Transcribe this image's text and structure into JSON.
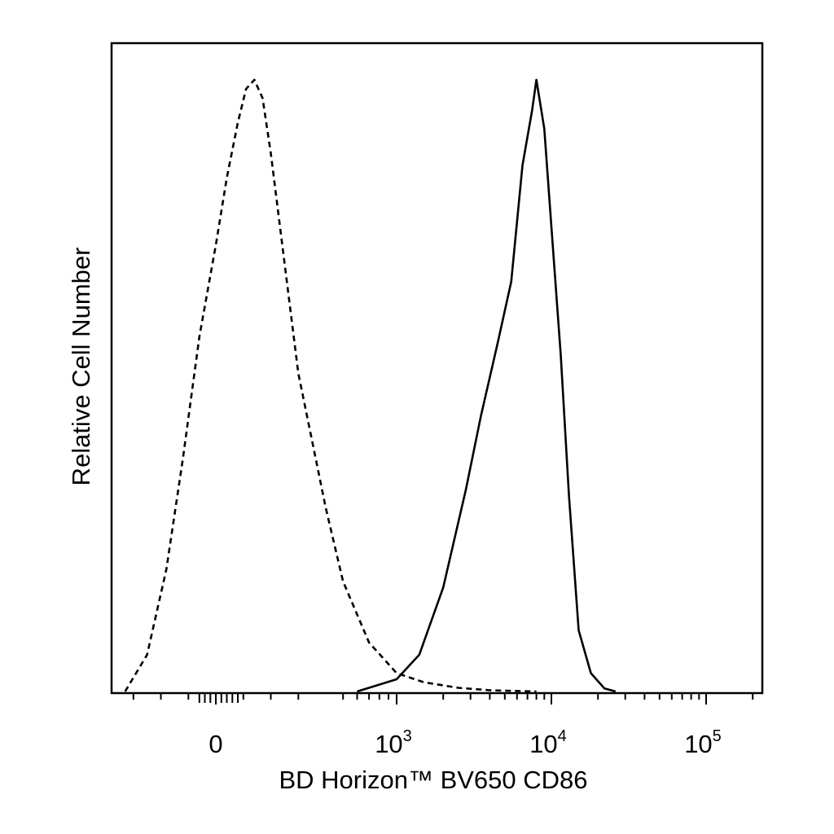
{
  "chart_data": {
    "type": "line",
    "title": "",
    "xlabel": "BD Horizon™ BV650 CD86",
    "ylabel": "Relative Cell Number",
    "x_scale": "biexponential",
    "xlim": [
      -400,
      250000
    ],
    "ylim": [
      0,
      100
    ],
    "grid": false,
    "x_ticks": [
      {
        "value": 0,
        "label": "0",
        "sup": ""
      },
      {
        "value": 1000,
        "label": "10",
        "sup": "3"
      },
      {
        "value": 10000,
        "label": "10",
        "sup": "4"
      },
      {
        "value": 100000,
        "label": "10",
        "sup": "5"
      }
    ],
    "series": [
      {
        "style": "dashed",
        "x": [
          -330,
          -250,
          -180,
          -120,
          -60,
          0,
          40,
          80,
          110,
          140,
          170,
          200,
          250,
          300,
          400,
          500,
          700,
          1000,
          1500,
          2500,
          4000,
          8000
        ],
        "y": [
          0,
          6,
          20,
          38,
          58,
          73,
          84,
          93,
          98.5,
          100,
          97,
          88,
          70,
          52,
          30,
          18,
          8,
          3,
          1.5,
          0.6,
          0.2,
          0
        ]
      },
      {
        "style": "solid",
        "x": [
          600,
          1000,
          1400,
          2000,
          2800,
          3500,
          4500,
          5500,
          6500,
          7500,
          8000,
          9000,
          10000,
          11500,
          13000,
          15000,
          18000,
          22000,
          26000
        ],
        "y": [
          0,
          2,
          6,
          17,
          33,
          45,
          57,
          67,
          86,
          95,
          100,
          92,
          76,
          55,
          32,
          10,
          3,
          0.5,
          0
        ]
      }
    ]
  }
}
